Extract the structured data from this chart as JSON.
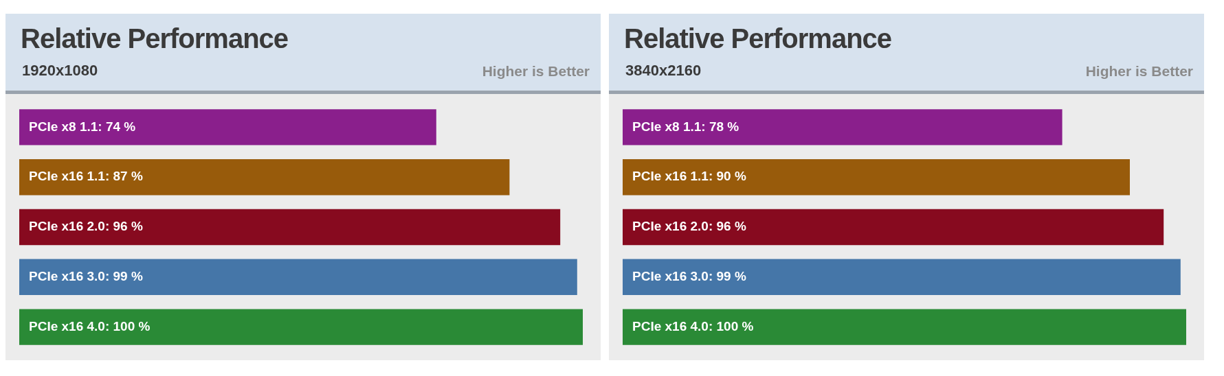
{
  "chart_data": [
    {
      "type": "bar",
      "orientation": "horizontal",
      "title": "Relative Performance",
      "subtitle": "1920x1080",
      "annotations": [
        "Higher is Better"
      ],
      "categories": [
        "PCIe x8 1.1",
        "PCIe x16 1.1",
        "PCIe x16 2.0",
        "PCIe x16 3.0",
        "PCIe x16 4.0"
      ],
      "values": [
        74,
        87,
        96,
        99,
        100
      ],
      "value_labels": [
        ": 74 %",
        ": 87 %",
        ": 96 %",
        ": 99 %",
        ": 100 %"
      ],
      "colors": [
        "#8a1f8c",
        "#985b0b",
        "#870a1f",
        "#4576a8",
        "#2a8a36"
      ]
    },
    {
      "type": "bar",
      "orientation": "horizontal",
      "title": "Relative Performance",
      "subtitle": "3840x2160",
      "annotations": [
        "Higher is Better"
      ],
      "categories": [
        "PCIe x8 1.1",
        "PCIe x16 1.1",
        "PCIe x16 2.0",
        "PCIe x16 3.0",
        "PCIe x16 4.0"
      ],
      "values": [
        78,
        90,
        96,
        99,
        100
      ],
      "value_labels": [
        ": 78 %",
        ": 90 %",
        ": 96 %",
        ": 99 %",
        ": 100 %"
      ],
      "colors": [
        "#8a1f8c",
        "#985b0b",
        "#870a1f",
        "#4576a8",
        "#2a8a36"
      ]
    }
  ]
}
